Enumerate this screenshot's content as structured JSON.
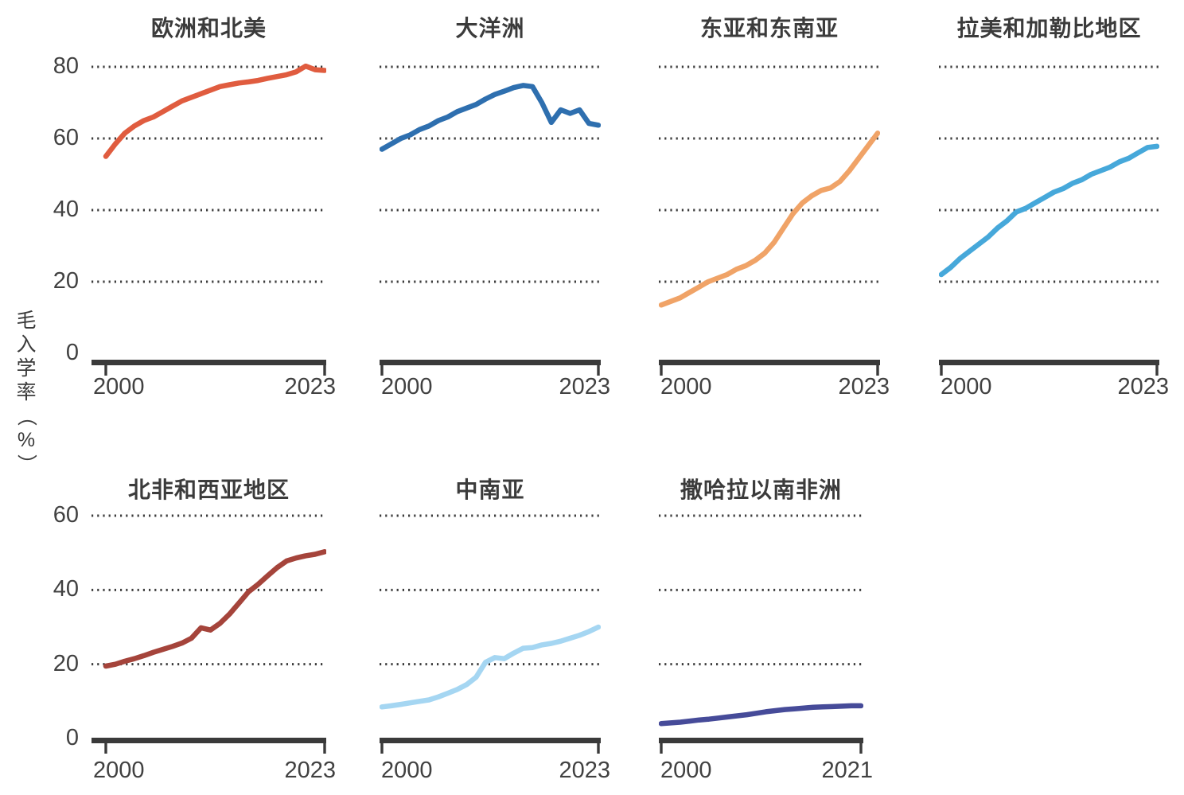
{
  "y_axis": {
    "label": "毛入学率（%）",
    "top_row_ticks": [
      80,
      60,
      40,
      20,
      0
    ],
    "bottom_row_ticks": [
      60,
      40,
      20,
      0
    ]
  },
  "chart_data": [
    {
      "type": "line",
      "title": "欧洲和北美",
      "color": "#E05C3F",
      "x_range": [
        2000,
        2023
      ],
      "x_start_label": "2000",
      "x_end_label": "2023",
      "ylim": [
        0,
        88
      ],
      "y_gridlines": [
        20,
        40,
        60,
        80
      ],
      "ylabel": "毛入学率（%）",
      "values": [
        55,
        58.5,
        61.5,
        63.5,
        65,
        66,
        67.5,
        69,
        70.5,
        71.5,
        72.5,
        73.5,
        74.5,
        75,
        75.5,
        75.8,
        76.2,
        76.8,
        77.3,
        77.8,
        78.6,
        80.2,
        79.2,
        79
      ]
    },
    {
      "type": "line",
      "title": "大洋洲",
      "color": "#2E6FAF",
      "x_range": [
        2000,
        2023
      ],
      "x_start_label": "2000",
      "x_end_label": "2023",
      "ylim": [
        0,
        88
      ],
      "y_gridlines": [
        20,
        40,
        60,
        80
      ],
      "values": [
        57,
        58.5,
        60,
        61,
        62.5,
        63.5,
        65,
        66,
        67.5,
        68.5,
        69.5,
        71,
        72.3,
        73.2,
        74.2,
        74.8,
        74.5,
        70,
        64.5,
        68,
        67,
        68,
        64.2,
        63.7
      ]
    },
    {
      "type": "line",
      "title": "东亚和东南亚",
      "color": "#F0A367",
      "x_range": [
        2000,
        2023
      ],
      "x_start_label": "2000",
      "x_end_label": "2023",
      "ylim": [
        0,
        88
      ],
      "y_gridlines": [
        20,
        40,
        60,
        80
      ],
      "values": [
        13.5,
        14.5,
        15.5,
        17,
        18.5,
        20,
        21,
        22,
        23.5,
        24.5,
        26,
        28,
        31,
        35,
        39,
        42,
        44,
        45.5,
        46.2,
        48,
        51,
        54.5,
        58,
        61.5
      ]
    },
    {
      "type": "line",
      "title": "拉美和加勒比地区",
      "color": "#46A8DA",
      "x_range": [
        2000,
        2023
      ],
      "x_start_label": "2000",
      "x_end_label": "2023",
      "ylim": [
        0,
        88
      ],
      "y_gridlines": [
        20,
        40,
        60,
        80
      ],
      "values": [
        22,
        24,
        26.5,
        28.5,
        30.5,
        32.5,
        35,
        37,
        39.5,
        40.5,
        42,
        43.5,
        45,
        46,
        47.5,
        48.5,
        50,
        51,
        52,
        53.5,
        54.5,
        56,
        57.5,
        57.8
      ]
    },
    {
      "type": "line",
      "title": "北非和西亚地区",
      "color": "#A5443B",
      "x_range": [
        2000,
        2023
      ],
      "x_start_label": "2000",
      "x_end_label": "2023",
      "ylim": [
        0,
        64
      ],
      "y_gridlines": [
        20,
        40,
        60
      ],
      "values": [
        19.5,
        20,
        20.8,
        21.5,
        22.3,
        23.2,
        24,
        24.8,
        25.7,
        27,
        29.8,
        29.2,
        31,
        33.5,
        36.5,
        39.5,
        41.5,
        43.8,
        46,
        47.8,
        48.6,
        49.2,
        49.6,
        50.3
      ]
    },
    {
      "type": "line",
      "title": "中南亚",
      "color": "#A5D6F2",
      "x_range": [
        2000,
        2023
      ],
      "x_start_label": "2000",
      "x_end_label": "2023",
      "ylim": [
        0,
        64
      ],
      "y_gridlines": [
        20,
        40,
        60
      ],
      "values": [
        8.5,
        8.8,
        9.2,
        9.6,
        10,
        10.4,
        11.2,
        12.2,
        13.2,
        14.5,
        16.5,
        20.5,
        21.8,
        21.5,
        23,
        24.3,
        24.5,
        25.2,
        25.6,
        26.2,
        27,
        27.8,
        28.8,
        30
      ]
    },
    {
      "type": "line",
      "title": "撒哈拉以南非洲",
      "color": "#464B99",
      "x_range": [
        2000,
        2021
      ],
      "x_start_label": "2000",
      "x_end_label": "2021",
      "ylim": [
        0,
        64
      ],
      "y_gridlines": [
        20,
        40,
        60
      ],
      "values": [
        4,
        4.2,
        4.4,
        4.7,
        5,
        5.2,
        5.5,
        5.8,
        6.1,
        6.4,
        6.8,
        7.2,
        7.5,
        7.8,
        8,
        8.2,
        8.4,
        8.5,
        8.6,
        8.7,
        8.8,
        8.8
      ]
    }
  ]
}
